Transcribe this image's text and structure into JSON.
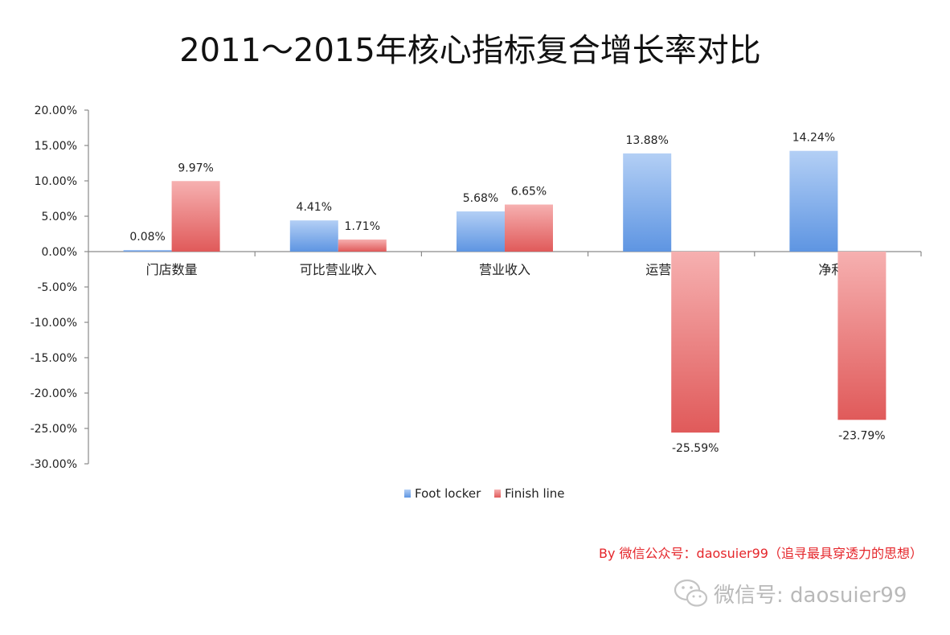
{
  "chart_data": {
    "type": "bar",
    "title": "2011～2015年核心指标复合增长率对比",
    "categories": [
      "门店数量",
      "可比营业收入",
      "营业收入",
      "运营利润",
      "净利润"
    ],
    "series": [
      {
        "name": "Foot locker",
        "values": [
          0.08,
          4.41,
          5.68,
          13.88,
          14.24
        ],
        "labels": [
          "0.08%",
          "4.41%",
          "5.68%",
          "13.88%",
          "14.24%"
        ],
        "color": "#7aa7e8"
      },
      {
        "name": "Finish line",
        "values": [
          9.97,
          1.71,
          6.65,
          -25.59,
          -23.79
        ],
        "labels": [
          "9.97%",
          "1.71%",
          "6.65%",
          "-25.59%",
          "-23.79%"
        ],
        "color": "#ea6f6f"
      }
    ],
    "ylim": [
      -30,
      20
    ],
    "yticks": [
      20,
      15,
      10,
      5,
      0,
      -5,
      -10,
      -15,
      -20,
      -25,
      -30
    ],
    "ytick_labels": [
      "20.00%",
      "15.00%",
      "10.00%",
      "5.00%",
      "0.00%",
      "-5.00%",
      "-10.00%",
      "-15.00%",
      "-20.00%",
      "-25.00%",
      "-30.00%"
    ],
    "xlabel": "",
    "ylabel": "",
    "legend_position": "bottom",
    "grid": false
  },
  "credit": "By 微信公众号：daosuier99（追寻最具穿透力的思想）",
  "watermark": {
    "text": "微信号: daosuier99",
    "icon": "wechat-icon"
  }
}
